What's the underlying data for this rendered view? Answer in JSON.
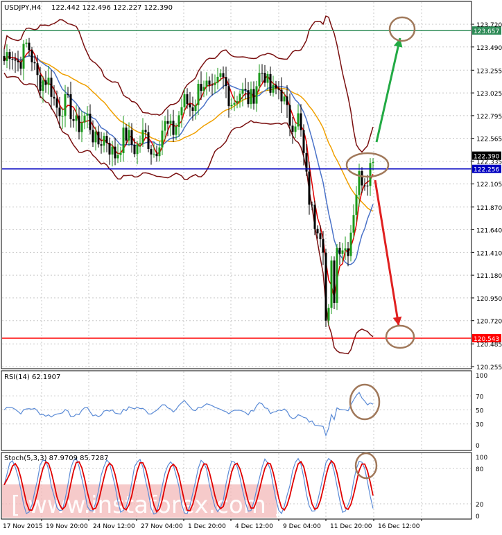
{
  "header": {
    "symbol": "USDJPY,H4",
    "ohlc": "122.442 122.496 122.227 122.390"
  },
  "levels": {
    "top": {
      "value": "123.657",
      "color": "#2e8b57"
    },
    "current": {
      "value": "122.390",
      "color": "#000000"
    },
    "support": {
      "value": "122.256",
      "color": "#0000c0"
    },
    "bottom": {
      "value": "120.543",
      "color": "#ff0000"
    }
  },
  "price_axis": {
    "ticks": [
      "123.720",
      "123.490",
      "123.255",
      "123.025",
      "122.795",
      "122.565",
      "122.335",
      "122.105",
      "121.870",
      "121.640",
      "121.410",
      "121.180",
      "120.950",
      "120.720",
      "120.485",
      "120.255"
    ],
    "min": 120.255,
    "max": 123.72
  },
  "rsi": {
    "label": "RSI(14) 62.1907",
    "ticks": [
      "100",
      "70",
      "50",
      "30",
      "0"
    ],
    "line_color": "#5b8bd6"
  },
  "stoch": {
    "label": "Stoch(5,3,3) 87.9709 85.7287",
    "ticks": [
      "100",
      "80",
      "20",
      "0"
    ],
    "main_color": "#5b8bd6",
    "signal_color": "#e00000"
  },
  "time_axis": {
    "labels": [
      "17 Nov 2015",
      "19 Nov 20:00",
      "24 Nov 12:00",
      "27 Nov 04:00",
      "1 Dec 20:00",
      "4 Dec 12:00",
      "9 Dec 04:00",
      "11 Dec 20:00",
      "16 Dec 12:00"
    ]
  },
  "watermark": "[ www.instaforex.com ]",
  "colors": {
    "bull_candle": "#1a9a1a",
    "bear_candle": "#000000",
    "bollinger": "#7a1010",
    "ma_fast": "#e00000",
    "ma_mid": "#4a72c8",
    "ma_slow": "#f0a000",
    "arrow_up": "#22aa44",
    "arrow_down": "#e02020",
    "ellipse": "#a0785a"
  },
  "chart_data": {
    "type": "candlestick",
    "title": "USDJPY,H4",
    "ylim": [
      120.255,
      123.72
    ],
    "horizontal_levels": [
      123.657,
      122.256,
      120.543
    ],
    "last_price": 122.39,
    "rsi_last": 62.1907,
    "stoch_last": [
      87.9709,
      85.7287
    ]
  }
}
